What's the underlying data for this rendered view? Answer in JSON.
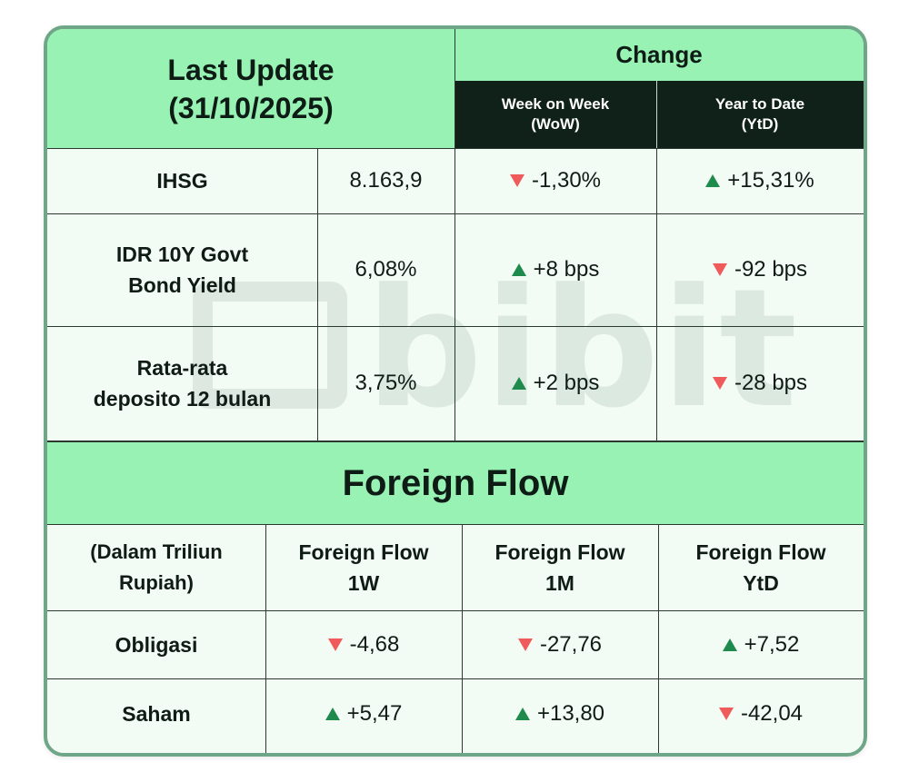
{
  "header": {
    "last_update_line1": "Last Update",
    "last_update_line2": "(31/10/2025)",
    "change": "Change",
    "wow_line1": "Week on Week",
    "wow_line2": "(WoW)",
    "ytd_line1": "Year to Date",
    "ytd_line2": "(YtD)"
  },
  "rows": [
    {
      "label_line1": "IHSG",
      "label_line2": "",
      "value": "8.163,9",
      "wow": "-1,30%",
      "wow_dir": "down",
      "ytd": "+15,31%",
      "ytd_dir": "up"
    },
    {
      "label_line1": "IDR 10Y Govt",
      "label_line2": "Bond Yield",
      "value": "6,08%",
      "wow": "+8 bps",
      "wow_dir": "up",
      "ytd": "-92 bps",
      "ytd_dir": "down"
    },
    {
      "label_line1": "Rata-rata",
      "label_line2": "deposito 12 bulan",
      "value": "3,75%",
      "wow": "+2 bps",
      "wow_dir": "up",
      "ytd": "-28 bps",
      "ytd_dir": "down"
    }
  ],
  "foreign_flow": {
    "title": "Foreign Flow",
    "unit_line1": "(Dalam Triliun",
    "unit_line2": "Rupiah)",
    "col_1w_line1": "Foreign Flow",
    "col_1w_line2": "1W",
    "col_1m_line1": "Foreign Flow",
    "col_1m_line2": "1M",
    "col_ytd_line1": "Foreign Flow",
    "col_ytd_line2": "YtD",
    "rows": [
      {
        "label": "Obligasi",
        "w1": "-4,68",
        "w1_dir": "down",
        "m1": "-27,76",
        "m1_dir": "down",
        "ytd": "+7,52",
        "ytd_dir": "up"
      },
      {
        "label": "Saham",
        "w1": "+5,47",
        "w1_dir": "up",
        "m1": "+13,80",
        "m1_dir": "up",
        "ytd": "-42,04",
        "ytd_dir": "down"
      }
    ]
  },
  "watermark": "bibit",
  "colors": {
    "header_green": "#97f2b3",
    "header_dark": "#0f2119",
    "up": "#1e8a4c",
    "down": "#ef5a5a",
    "border": "#6fa688"
  }
}
